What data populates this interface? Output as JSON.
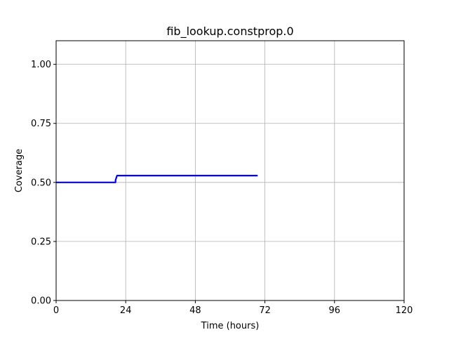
{
  "chart_data": {
    "type": "line",
    "title": "fib_lookup.constprop.0",
    "xlabel": "Time (hours)",
    "ylabel": "Coverage",
    "xlim": [
      0,
      120
    ],
    "ylim": [
      0,
      1.1
    ],
    "xticks": [
      0,
      24,
      48,
      72,
      96,
      120
    ],
    "yticks": [
      0.0,
      0.25,
      0.5,
      0.75,
      1.0
    ],
    "xtick_labels": [
      "0",
      "24",
      "48",
      "72",
      "96",
      "120"
    ],
    "ytick_labels": [
      "0.00",
      "0.25",
      "0.50",
      "0.75",
      "1.00"
    ],
    "grid": true,
    "series": [
      {
        "color": "#0000ff",
        "x": [
          0,
          20.5,
          20.5,
          21.0,
          69.5
        ],
        "y": [
          0.5,
          0.5,
          0.51,
          0.529,
          0.529
        ]
      }
    ]
  }
}
